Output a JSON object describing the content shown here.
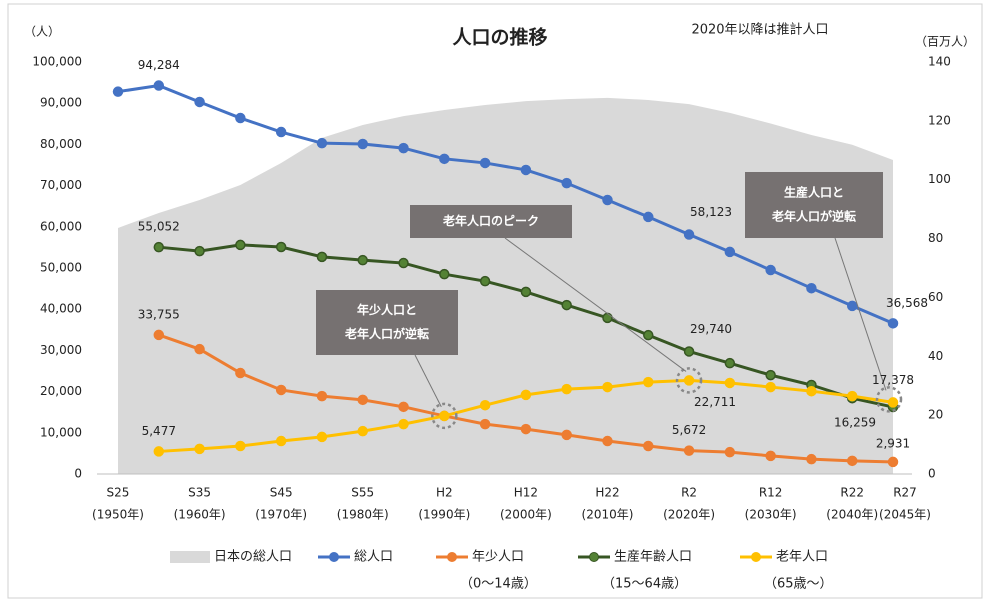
{
  "chart_data": {
    "type": "line",
    "title": "人口の推移",
    "subtitle": "2020年以降は推計人口",
    "ylabel": "（人）",
    "y2label": "（百万人）",
    "categories": [
      "S25",
      null,
      "S35",
      null,
      "S45",
      null,
      "S55",
      null,
      "H2",
      null,
      "H12",
      null,
      "H22",
      null,
      "R2",
      null,
      "R12",
      null,
      "R22",
      "R27"
    ],
    "category_years": [
      "(1950年)",
      null,
      "(1960年)",
      null,
      "(1970年)",
      null,
      "(1980年)",
      null,
      "(1990年)",
      null,
      "(2000年)",
      null,
      "(2010年)",
      null,
      "(2020年)",
      null,
      "(2030年)",
      null,
      "(2040年)",
      "(2045年)"
    ],
    "ylim": [
      0,
      100000
    ],
    "yticks": [
      0,
      {
        "value": 10000,
        "label": "10,000"
      },
      {
        "value": 20000,
        "label": "20,000"
      },
      {
        "value": 30000,
        "label": "30,000"
      },
      {
        "value": 40000,
        "label": "40,000"
      },
      {
        "value": 50000,
        "label": "50,000"
      },
      {
        "value": 60000,
        "label": "60,000"
      },
      {
        "value": 70000,
        "label": "70,000"
      },
      {
        "value": 80000,
        "label": "80,000"
      },
      {
        "value": 90000,
        "label": "90,000"
      },
      {
        "value": 100000,
        "label": "100,000"
      }
    ],
    "y2lim": [
      0,
      140
    ],
    "y2ticks": [
      0,
      20,
      40,
      60,
      80,
      100,
      120,
      140
    ],
    "series": [
      {
        "name": "日本の総人口",
        "type": "area",
        "axis": "y2",
        "color": "#d9d9d9",
        "values": [
          83.6,
          88.7,
          93.1,
          98.2,
          105.7,
          114.2,
          118.6,
          121.6,
          123.7,
          125.4,
          126.7,
          127.4,
          127.8,
          127.1,
          125.7,
          122.7,
          119.1,
          115.2,
          111.9,
          106.7
        ]
      },
      {
        "name": "総人口",
        "color": "#4472c4",
        "values": [
          92800,
          94284,
          90300,
          86400,
          83000,
          80300,
          80100,
          79100,
          76500,
          75500,
          73800,
          70600,
          66500,
          62400,
          58123,
          53900,
          49500,
          45100,
          40800,
          36568
        ],
        "value_labels": [
          null,
          "94,284",
          null,
          null,
          null,
          null,
          null,
          null,
          null,
          null,
          null,
          null,
          null,
          null,
          "58,123",
          null,
          null,
          null,
          null,
          "36,568"
        ]
      },
      {
        "name": "年少人口",
        "note": "（0〜14歳）",
        "color": "#ed7d31",
        "values": [
          null,
          33755,
          30300,
          24500,
          20400,
          18900,
          18000,
          16300,
          14100,
          12100,
          10900,
          9500,
          8000,
          6800,
          5672,
          5300,
          4400,
          3600,
          3200,
          2931
        ],
        "value_labels": [
          null,
          "33,755",
          null,
          null,
          null,
          null,
          null,
          null,
          null,
          null,
          null,
          null,
          null,
          null,
          "5,672",
          null,
          null,
          null,
          null,
          "2,931"
        ]
      },
      {
        "name": "生産年齢人口",
        "note": "（15〜64歳）",
        "color": "#375623",
        "values": [
          null,
          55052,
          54100,
          55600,
          55100,
          52700,
          51900,
          51200,
          48500,
          46800,
          44200,
          41000,
          37900,
          33700,
          29740,
          26900,
          24000,
          21600,
          18400,
          16259
        ],
        "value_labels": [
          null,
          "55,052",
          null,
          null,
          null,
          null,
          null,
          null,
          null,
          null,
          null,
          null,
          null,
          null,
          "29,740",
          null,
          null,
          null,
          null,
          "16,259"
        ]
      },
      {
        "name": "老年人口",
        "note": "（65歳〜）",
        "color": "#ffc000",
        "values": [
          null,
          5477,
          6100,
          6800,
          8000,
          9000,
          10400,
          12100,
          14100,
          16700,
          19200,
          20600,
          21100,
          22300,
          22711,
          22100,
          21100,
          20100,
          18900,
          17378
        ],
        "value_labels": [
          null,
          "5,477",
          null,
          null,
          null,
          null,
          null,
          null,
          null,
          null,
          null,
          null,
          null,
          null,
          "22,711",
          null,
          null,
          null,
          null,
          "17,378"
        ]
      }
    ],
    "annotations": [
      {
        "lines": [
          "年少人口と",
          "老年人口が逆転"
        ]
      },
      {
        "lines": [
          "老年人口のピーク"
        ]
      },
      {
        "lines": [
          "生産人口と",
          "老年人口が逆転"
        ]
      }
    ]
  }
}
